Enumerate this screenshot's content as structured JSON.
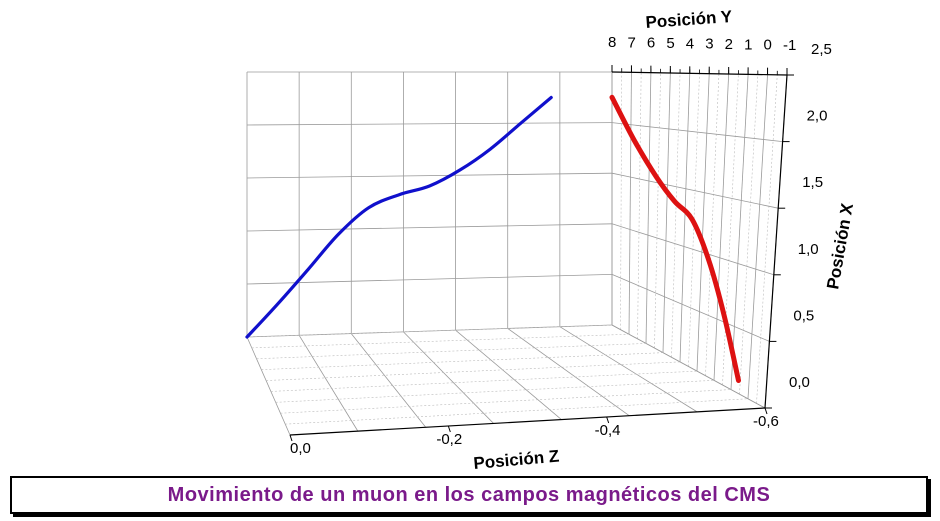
{
  "caption": "Movimiento de un muon en los campos magnéticos del CMS",
  "chart_data": {
    "type": "line3d",
    "axes": {
      "x": {
        "label": "Posición X",
        "ticks": [
          "0,0",
          "0,5",
          "1,0",
          "1,5",
          "2,0",
          "2,5"
        ],
        "range": [
          0,
          2.5
        ]
      },
      "y": {
        "label": "Posición Y",
        "ticks": [
          "8",
          "7",
          "6",
          "5",
          "4",
          "3",
          "2",
          "1",
          "0",
          "-1"
        ],
        "range": [
          -1,
          8
        ]
      },
      "z": {
        "label": "Posición Z",
        "ticks": [
          "0,0",
          "-0,2",
          "-0,4",
          "-0,6"
        ],
        "range": [
          0,
          -0.6
        ]
      }
    },
    "grid": true,
    "series": [
      {
        "projection": "X vs Z (back wall)",
        "color": "#1010cc",
        "points": [
          [
            0.0,
            0.0
          ],
          [
            -0.05,
            0.3
          ],
          [
            -0.1,
            0.62
          ],
          [
            -0.15,
            0.95
          ],
          [
            -0.2,
            1.2
          ],
          [
            -0.25,
            1.32
          ],
          [
            -0.3,
            1.4
          ],
          [
            -0.35,
            1.55
          ],
          [
            -0.4,
            1.75
          ],
          [
            -0.45,
            2.0
          ],
          [
            -0.5,
            2.25
          ]
        ]
      },
      {
        "projection": "X vs Y (side wall)",
        "color": "#dd1111",
        "points": [
          [
            8.0,
            2.25
          ],
          [
            6.8,
            1.85
          ],
          [
            5.6,
            1.55
          ],
          [
            4.6,
            1.37
          ],
          [
            3.6,
            1.25
          ],
          [
            2.6,
            0.95
          ],
          [
            1.6,
            0.55
          ],
          [
            0.6,
            0.1
          ]
        ]
      }
    ]
  }
}
